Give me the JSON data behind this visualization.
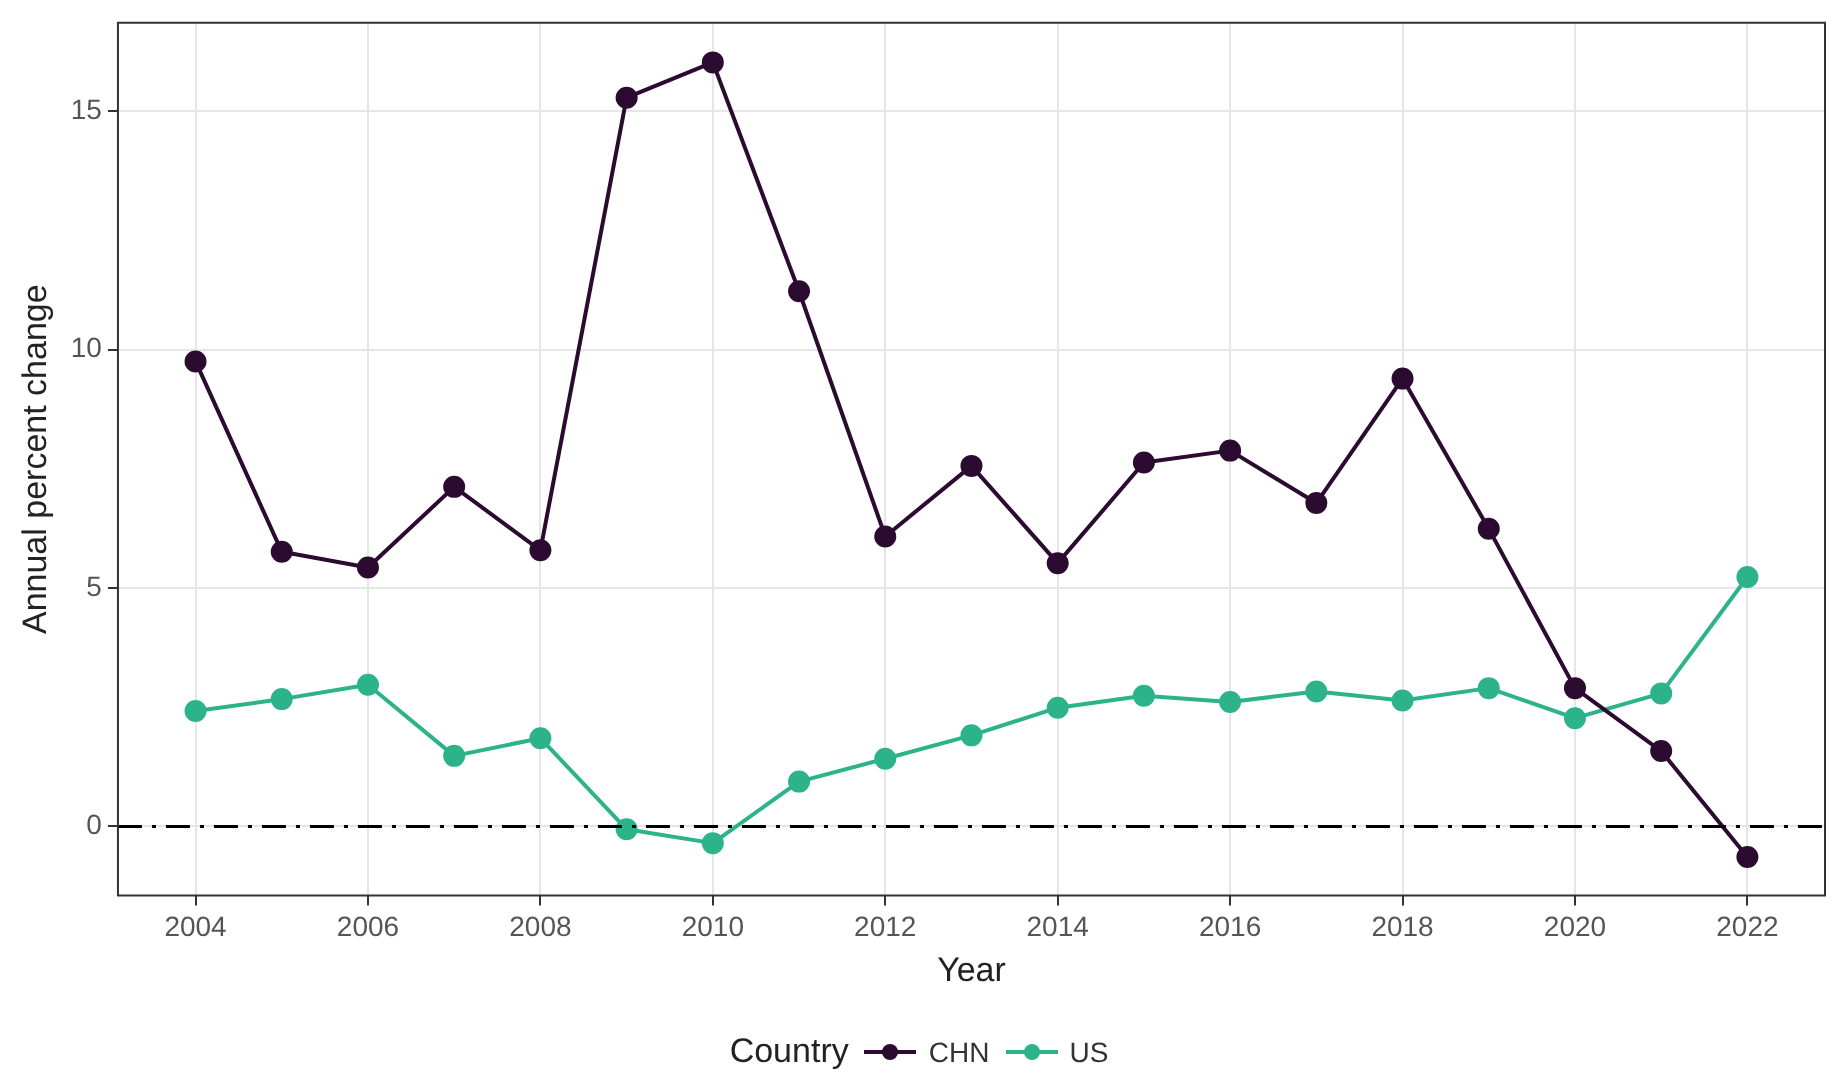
{
  "chart_data": {
    "type": "line",
    "xlabel": "Year",
    "ylabel": "Annual percent change",
    "legend_title": "Country",
    "x": [
      2004,
      2005,
      2006,
      2007,
      2008,
      2009,
      2010,
      2011,
      2012,
      2013,
      2014,
      2015,
      2016,
      2017,
      2018,
      2019,
      2020,
      2021,
      2022
    ],
    "series": [
      {
        "name": "CHN",
        "color": "#2b0b2f",
        "values": [
          9.75,
          5.76,
          5.43,
          7.12,
          5.79,
          15.28,
          16.02,
          11.22,
          6.08,
          7.56,
          5.52,
          7.63,
          7.88,
          6.78,
          9.39,
          6.24,
          2.9,
          1.58,
          -0.64
        ]
      },
      {
        "name": "US",
        "color": "#2db38a",
        "values": [
          2.42,
          2.67,
          2.97,
          1.48,
          1.85,
          -0.06,
          -0.35,
          0.94,
          1.42,
          1.91,
          2.49,
          2.74,
          2.61,
          2.83,
          2.64,
          2.9,
          2.27,
          2.79,
          5.23
        ]
      }
    ],
    "xlim": [
      2003.1,
      2022.9
    ],
    "xticks": [
      2004,
      2006,
      2008,
      2010,
      2012,
      2014,
      2016,
      2018,
      2020,
      2022
    ],
    "ylim": [
      -1.45,
      16.85
    ],
    "yticks": [
      0,
      5,
      10,
      15
    ],
    "ref_lines": [
      {
        "axis": "y",
        "value": 0,
        "color": "#000000",
        "line_style": "dashdot"
      }
    ],
    "grid": true,
    "legend": "bottom",
    "marker": "circle",
    "line_style": "solid"
  }
}
